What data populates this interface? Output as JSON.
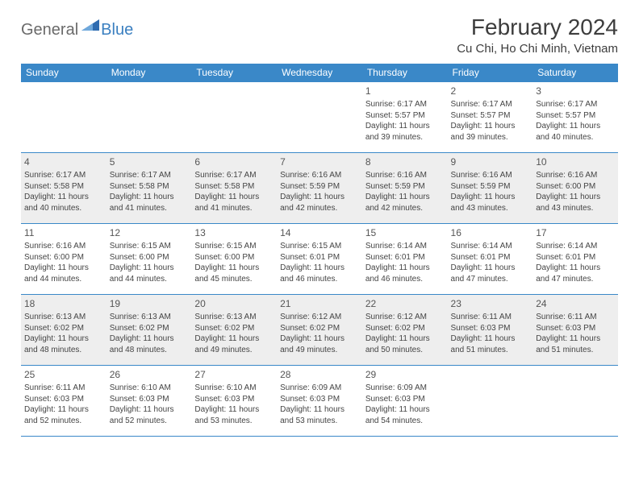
{
  "logo": {
    "general": "General",
    "blue": "Blue"
  },
  "title": "February 2024",
  "location": "Cu Chi, Ho Chi Minh, Vietnam",
  "colors": {
    "header_bg": "#3a88c8",
    "header_text": "#ffffff",
    "border": "#3a88c8",
    "shaded_row": "#eeeeee",
    "text": "#444444",
    "logo_general": "#6a6a6a",
    "logo_blue": "#3a7fc0"
  },
  "day_headers": [
    "Sunday",
    "Monday",
    "Tuesday",
    "Wednesday",
    "Thursday",
    "Friday",
    "Saturday"
  ],
  "weeks": [
    {
      "shaded": false,
      "days": [
        null,
        null,
        null,
        null,
        {
          "num": "1",
          "sunrise": "Sunrise: 6:17 AM",
          "sunset": "Sunset: 5:57 PM",
          "daylight": "Daylight: 11 hours and 39 minutes."
        },
        {
          "num": "2",
          "sunrise": "Sunrise: 6:17 AM",
          "sunset": "Sunset: 5:57 PM",
          "daylight": "Daylight: 11 hours and 39 minutes."
        },
        {
          "num": "3",
          "sunrise": "Sunrise: 6:17 AM",
          "sunset": "Sunset: 5:57 PM",
          "daylight": "Daylight: 11 hours and 40 minutes."
        }
      ]
    },
    {
      "shaded": true,
      "days": [
        {
          "num": "4",
          "sunrise": "Sunrise: 6:17 AM",
          "sunset": "Sunset: 5:58 PM",
          "daylight": "Daylight: 11 hours and 40 minutes."
        },
        {
          "num": "5",
          "sunrise": "Sunrise: 6:17 AM",
          "sunset": "Sunset: 5:58 PM",
          "daylight": "Daylight: 11 hours and 41 minutes."
        },
        {
          "num": "6",
          "sunrise": "Sunrise: 6:17 AM",
          "sunset": "Sunset: 5:58 PM",
          "daylight": "Daylight: 11 hours and 41 minutes."
        },
        {
          "num": "7",
          "sunrise": "Sunrise: 6:16 AM",
          "sunset": "Sunset: 5:59 PM",
          "daylight": "Daylight: 11 hours and 42 minutes."
        },
        {
          "num": "8",
          "sunrise": "Sunrise: 6:16 AM",
          "sunset": "Sunset: 5:59 PM",
          "daylight": "Daylight: 11 hours and 42 minutes."
        },
        {
          "num": "9",
          "sunrise": "Sunrise: 6:16 AM",
          "sunset": "Sunset: 5:59 PM",
          "daylight": "Daylight: 11 hours and 43 minutes."
        },
        {
          "num": "10",
          "sunrise": "Sunrise: 6:16 AM",
          "sunset": "Sunset: 6:00 PM",
          "daylight": "Daylight: 11 hours and 43 minutes."
        }
      ]
    },
    {
      "shaded": false,
      "days": [
        {
          "num": "11",
          "sunrise": "Sunrise: 6:16 AM",
          "sunset": "Sunset: 6:00 PM",
          "daylight": "Daylight: 11 hours and 44 minutes."
        },
        {
          "num": "12",
          "sunrise": "Sunrise: 6:15 AM",
          "sunset": "Sunset: 6:00 PM",
          "daylight": "Daylight: 11 hours and 44 minutes."
        },
        {
          "num": "13",
          "sunrise": "Sunrise: 6:15 AM",
          "sunset": "Sunset: 6:00 PM",
          "daylight": "Daylight: 11 hours and 45 minutes."
        },
        {
          "num": "14",
          "sunrise": "Sunrise: 6:15 AM",
          "sunset": "Sunset: 6:01 PM",
          "daylight": "Daylight: 11 hours and 46 minutes."
        },
        {
          "num": "15",
          "sunrise": "Sunrise: 6:14 AM",
          "sunset": "Sunset: 6:01 PM",
          "daylight": "Daylight: 11 hours and 46 minutes."
        },
        {
          "num": "16",
          "sunrise": "Sunrise: 6:14 AM",
          "sunset": "Sunset: 6:01 PM",
          "daylight": "Daylight: 11 hours and 47 minutes."
        },
        {
          "num": "17",
          "sunrise": "Sunrise: 6:14 AM",
          "sunset": "Sunset: 6:01 PM",
          "daylight": "Daylight: 11 hours and 47 minutes."
        }
      ]
    },
    {
      "shaded": true,
      "days": [
        {
          "num": "18",
          "sunrise": "Sunrise: 6:13 AM",
          "sunset": "Sunset: 6:02 PM",
          "daylight": "Daylight: 11 hours and 48 minutes."
        },
        {
          "num": "19",
          "sunrise": "Sunrise: 6:13 AM",
          "sunset": "Sunset: 6:02 PM",
          "daylight": "Daylight: 11 hours and 48 minutes."
        },
        {
          "num": "20",
          "sunrise": "Sunrise: 6:13 AM",
          "sunset": "Sunset: 6:02 PM",
          "daylight": "Daylight: 11 hours and 49 minutes."
        },
        {
          "num": "21",
          "sunrise": "Sunrise: 6:12 AM",
          "sunset": "Sunset: 6:02 PM",
          "daylight": "Daylight: 11 hours and 49 minutes."
        },
        {
          "num": "22",
          "sunrise": "Sunrise: 6:12 AM",
          "sunset": "Sunset: 6:02 PM",
          "daylight": "Daylight: 11 hours and 50 minutes."
        },
        {
          "num": "23",
          "sunrise": "Sunrise: 6:11 AM",
          "sunset": "Sunset: 6:03 PM",
          "daylight": "Daylight: 11 hours and 51 minutes."
        },
        {
          "num": "24",
          "sunrise": "Sunrise: 6:11 AM",
          "sunset": "Sunset: 6:03 PM",
          "daylight": "Daylight: 11 hours and 51 minutes."
        }
      ]
    },
    {
      "shaded": false,
      "days": [
        {
          "num": "25",
          "sunrise": "Sunrise: 6:11 AM",
          "sunset": "Sunset: 6:03 PM",
          "daylight": "Daylight: 11 hours and 52 minutes."
        },
        {
          "num": "26",
          "sunrise": "Sunrise: 6:10 AM",
          "sunset": "Sunset: 6:03 PM",
          "daylight": "Daylight: 11 hours and 52 minutes."
        },
        {
          "num": "27",
          "sunrise": "Sunrise: 6:10 AM",
          "sunset": "Sunset: 6:03 PM",
          "daylight": "Daylight: 11 hours and 53 minutes."
        },
        {
          "num": "28",
          "sunrise": "Sunrise: 6:09 AM",
          "sunset": "Sunset: 6:03 PM",
          "daylight": "Daylight: 11 hours and 53 minutes."
        },
        {
          "num": "29",
          "sunrise": "Sunrise: 6:09 AM",
          "sunset": "Sunset: 6:03 PM",
          "daylight": "Daylight: 11 hours and 54 minutes."
        },
        null,
        null
      ]
    }
  ]
}
